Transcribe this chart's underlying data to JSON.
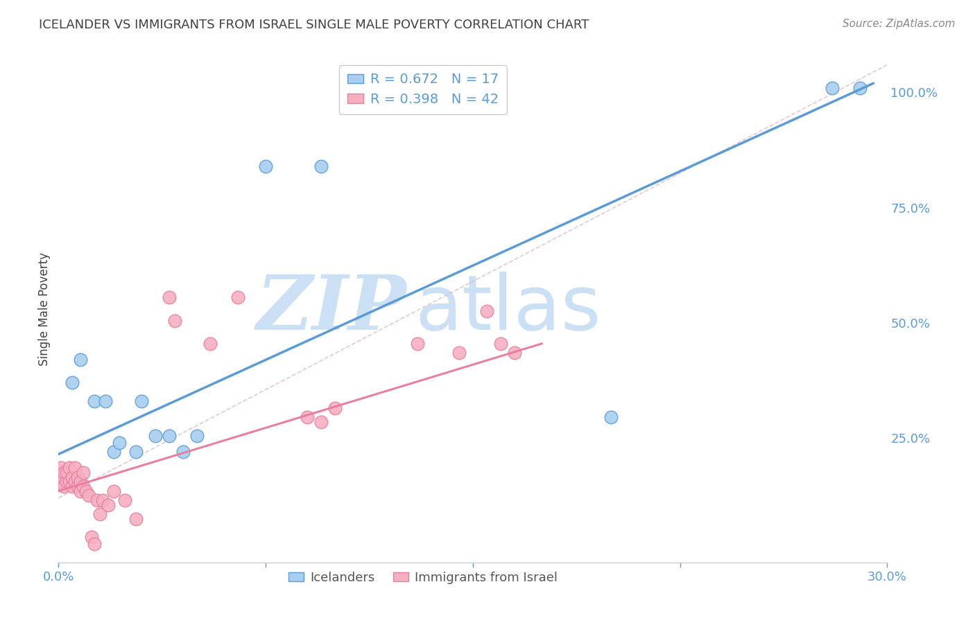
{
  "title": "ICELANDER VS IMMIGRANTS FROM ISRAEL SINGLE MALE POVERTY CORRELATION CHART",
  "source": "Source: ZipAtlas.com",
  "ylabel": "Single Male Poverty",
  "xlim": [
    0.0,
    0.3
  ],
  "ylim": [
    -0.02,
    1.08
  ],
  "xticks": [
    0.0,
    0.075,
    0.15,
    0.225,
    0.3
  ],
  "yticks_right": [
    0.25,
    0.5,
    0.75,
    1.0
  ],
  "ytick_labels_right": [
    "25.0%",
    "50.0%",
    "75.0%",
    "100.0%"
  ],
  "blue_scatter": [
    [
      0.005,
      0.37
    ],
    [
      0.008,
      0.42
    ],
    [
      0.013,
      0.33
    ],
    [
      0.017,
      0.33
    ],
    [
      0.02,
      0.22
    ],
    [
      0.022,
      0.24
    ],
    [
      0.028,
      0.22
    ],
    [
      0.03,
      0.33
    ],
    [
      0.035,
      0.255
    ],
    [
      0.04,
      0.255
    ],
    [
      0.045,
      0.22
    ],
    [
      0.05,
      0.255
    ],
    [
      0.075,
      0.84
    ],
    [
      0.095,
      0.84
    ],
    [
      0.2,
      0.295
    ],
    [
      0.28,
      1.01
    ],
    [
      0.29,
      1.01
    ]
  ],
  "pink_scatter": [
    [
      0.0005,
      0.155
    ],
    [
      0.001,
      0.165
    ],
    [
      0.001,
      0.185
    ],
    [
      0.002,
      0.145
    ],
    [
      0.002,
      0.175
    ],
    [
      0.003,
      0.155
    ],
    [
      0.003,
      0.175
    ],
    [
      0.004,
      0.155
    ],
    [
      0.004,
      0.185
    ],
    [
      0.005,
      0.145
    ],
    [
      0.005,
      0.165
    ],
    [
      0.006,
      0.155
    ],
    [
      0.006,
      0.185
    ],
    [
      0.007,
      0.145
    ],
    [
      0.007,
      0.165
    ],
    [
      0.008,
      0.135
    ],
    [
      0.008,
      0.155
    ],
    [
      0.009,
      0.145
    ],
    [
      0.009,
      0.175
    ],
    [
      0.01,
      0.135
    ],
    [
      0.011,
      0.125
    ],
    [
      0.012,
      0.035
    ],
    [
      0.013,
      0.02
    ],
    [
      0.014,
      0.115
    ],
    [
      0.015,
      0.085
    ],
    [
      0.016,
      0.115
    ],
    [
      0.018,
      0.105
    ],
    [
      0.02,
      0.135
    ],
    [
      0.024,
      0.115
    ],
    [
      0.028,
      0.075
    ],
    [
      0.04,
      0.555
    ],
    [
      0.042,
      0.505
    ],
    [
      0.055,
      0.455
    ],
    [
      0.065,
      0.555
    ],
    [
      0.09,
      0.295
    ],
    [
      0.095,
      0.285
    ],
    [
      0.1,
      0.315
    ],
    [
      0.13,
      0.455
    ],
    [
      0.145,
      0.435
    ],
    [
      0.155,
      0.525
    ],
    [
      0.16,
      0.455
    ],
    [
      0.165,
      0.435
    ]
  ],
  "blue_color": "#a8cef0",
  "pink_color": "#f5afc0",
  "blue_line_color": "#5b9bd5",
  "pink_line_color": "#e87fa0",
  "diagonal_color": "#e0b8c8",
  "R_blue": 0.672,
  "N_blue": 17,
  "R_pink": 0.398,
  "N_pink": 42,
  "watermark_zip": "ZIP",
  "watermark_atlas": "atlas",
  "watermark_color": "#cce0f5",
  "grid_color": "#d8d8d8",
  "title_color": "#404040",
  "axis_label_color": "#404040",
  "right_tick_color": "#5b9bd5",
  "xtick_color": "#5b9bd5"
}
